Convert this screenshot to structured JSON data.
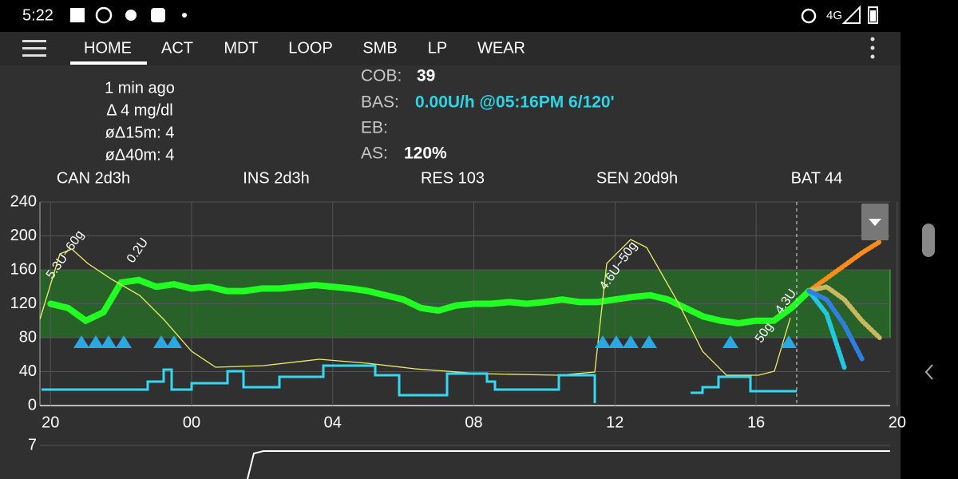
{
  "status_bar": {
    "time": "5:22",
    "network": "4G"
  },
  "tabs": [
    "HOME",
    "ACT",
    "MDT",
    "LOOP",
    "SMB",
    "LP",
    "WEAR"
  ],
  "overview": {
    "bg_info": [
      "1 min ago",
      "Δ 4 mg/dl",
      "øΔ15m: 4",
      "øΔ40m: 4"
    ],
    "cob": {
      "label": "COB:",
      "value": "39"
    },
    "bas": {
      "label": "BAS:",
      "value": "0.00U/h @05:16PM 6/120'"
    },
    "eb": {
      "label": "EB:"
    },
    "as": {
      "label": "AS:",
      "value": "120%"
    }
  },
  "status_row": [
    {
      "text": "CAN 2d3h",
      "color": "#ffff33"
    },
    {
      "text": "INS 2d3h",
      "color": "#ffffff"
    },
    {
      "text": "RES 103",
      "color": "#ffffff"
    },
    {
      "text": "SEN 20d9h",
      "color": "#ff2020"
    },
    {
      "text": "BAT 44",
      "color": "#ffffff"
    }
  ],
  "chart_data": {
    "type": "line",
    "x": [
      0,
      0.5,
      1,
      1.5,
      2,
      2.5,
      3,
      3.5,
      4,
      4.5,
      5,
      5.5,
      6,
      6.5,
      7,
      7.5,
      8,
      8.5,
      9,
      9.5,
      10,
      10.5,
      11,
      11.5,
      12,
      12.5,
      13,
      13.5,
      14,
      14.5,
      15,
      15.5,
      16,
      16.5,
      17,
      17.5,
      18,
      18.5,
      19,
      19.5,
      20,
      20.5,
      21,
      21.5,
      22,
      22.5,
      23,
      23.5
    ],
    "xlim": [
      -0.3,
      23.8
    ],
    "xticks": [
      {
        "value": 0,
        "label": "20"
      },
      {
        "value": 4,
        "label": "00"
      },
      {
        "value": 8,
        "label": "04"
      },
      {
        "value": 12,
        "label": "08"
      },
      {
        "value": 16,
        "label": "12"
      },
      {
        "value": 20,
        "label": "16"
      },
      {
        "value": 24,
        "label": "20"
      }
    ],
    "ylim": [
      0,
      240
    ],
    "yticks": [
      0,
      40,
      80,
      120,
      160,
      200,
      240
    ],
    "grid": true,
    "target_range": [
      80,
      160
    ],
    "series": [
      {
        "color": "#22ff22",
        "values": [
          120,
          115,
          100,
          110,
          145,
          148,
          140,
          143,
          138,
          140,
          135,
          135,
          138,
          138,
          140,
          142,
          140,
          138,
          135,
          130,
          125,
          115,
          112,
          118,
          120,
          120,
          122,
          120,
          122,
          125,
          122,
          122,
          125,
          128,
          130,
          125,
          115,
          105,
          100,
          97,
          100,
          100,
          115,
          135,
          null,
          null,
          null,
          null
        ]
      },
      {
        "color": "#ff8c1a",
        "values": [
          null,
          null,
          null,
          null,
          null,
          null,
          null,
          null,
          null,
          null,
          null,
          null,
          null,
          null,
          null,
          null,
          null,
          null,
          null,
          null,
          null,
          null,
          null,
          null,
          null,
          null,
          null,
          null,
          null,
          null,
          null,
          null,
          null,
          null,
          null,
          null,
          null,
          null,
          null,
          null,
          null,
          null,
          null,
          135,
          150,
          165,
          180,
          193
        ]
      },
      {
        "color": "#c8b860",
        "values": [
          null,
          null,
          null,
          null,
          null,
          null,
          null,
          null,
          null,
          null,
          null,
          null,
          null,
          null,
          null,
          null,
          null,
          null,
          null,
          null,
          null,
          null,
          null,
          null,
          null,
          null,
          null,
          null,
          null,
          null,
          null,
          null,
          null,
          null,
          null,
          null,
          null,
          null,
          null,
          null,
          null,
          null,
          null,
          135,
          140,
          125,
          100,
          80
        ]
      },
      {
        "color": "#22c8e0",
        "values": [
          null,
          null,
          null,
          null,
          null,
          null,
          null,
          null,
          null,
          null,
          null,
          null,
          null,
          null,
          null,
          null,
          null,
          null,
          null,
          null,
          null,
          null,
          null,
          null,
          null,
          null,
          null,
          null,
          null,
          null,
          null,
          null,
          null,
          null,
          null,
          null,
          null,
          null,
          null,
          null,
          null,
          null,
          null,
          135,
          108,
          45,
          null,
          null
        ]
      },
      {
        "color": "#2f7fe0",
        "values": [
          null,
          null,
          null,
          null,
          null,
          null,
          null,
          null,
          null,
          null,
          null,
          null,
          null,
          null,
          null,
          null,
          null,
          null,
          null,
          null,
          null,
          null,
          null,
          null,
          null,
          null,
          null,
          null,
          null,
          null,
          null,
          null,
          null,
          null,
          null,
          null,
          null,
          null,
          null,
          null,
          null,
          null,
          null,
          135,
          125,
          95,
          55,
          null
        ]
      }
    ],
    "annotations": [
      "5.3U~60g",
      "0.2U",
      "4.6U~50g",
      "50g",
      "4.3U"
    ]
  },
  "mini_chart": {
    "yticks": [
      7
    ]
  }
}
